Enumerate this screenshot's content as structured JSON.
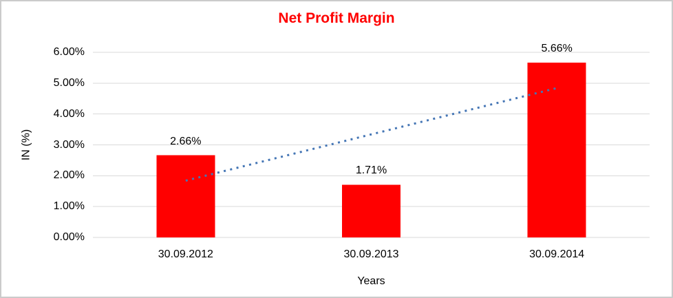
{
  "frame": {
    "background": "#ffffff",
    "border_color": "#cbcbcb"
  },
  "chart_data": {
    "type": "bar",
    "title": "Net Profit Margin",
    "title_color": "#ff0000",
    "xlabel": "Years",
    "ylabel": "IN (%)",
    "categories": [
      "30.09.2012",
      "30.09.2013",
      "30.09.2014"
    ],
    "values": [
      2.66,
      1.71,
      5.66
    ],
    "data_labels": [
      "2.66%",
      "1.71%",
      "5.66%"
    ],
    "bar_color": "#ff0000",
    "ylim": [
      0,
      6
    ],
    "y_ticks": [
      "0.00%",
      "1.00%",
      "2.00%",
      "3.00%",
      "4.00%",
      "5.00%",
      "6.00%"
    ],
    "grid": true,
    "gridline_color": "#d9d9d9",
    "legend": "none",
    "trendline": {
      "type": "linear",
      "style": "dotted",
      "color": "#4576b5",
      "start_value": 1.84,
      "end_value": 4.84
    }
  }
}
